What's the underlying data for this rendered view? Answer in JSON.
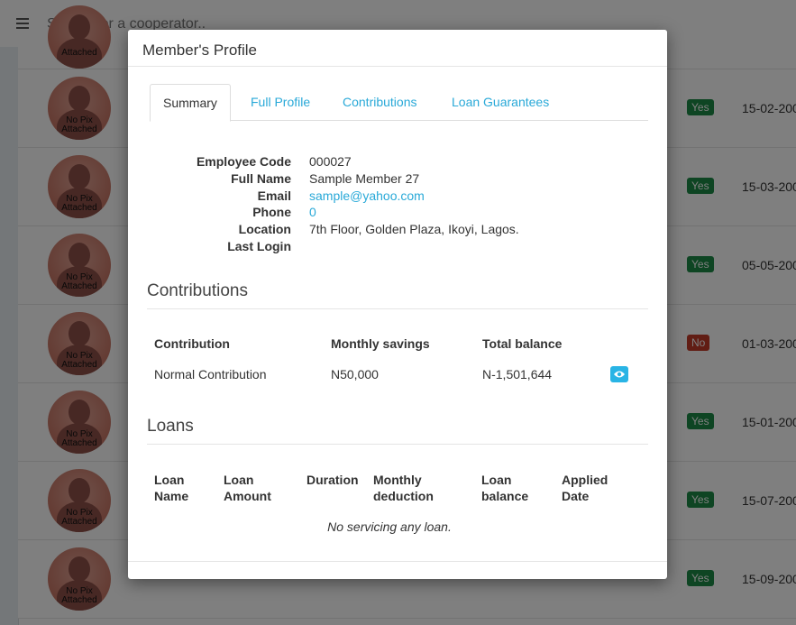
{
  "topbar": {
    "search_placeholder": "Search for a cooperator.."
  },
  "rows": [
    {
      "avatar_text": "No Pix Attached",
      "status": "Yes",
      "date": "15-02-200"
    },
    {
      "avatar_text": "No Pix Attached",
      "status": "Yes",
      "date": "15-03-200"
    },
    {
      "avatar_text": "No Pix Attached",
      "status": "Yes",
      "date": "05-05-200"
    },
    {
      "avatar_text": "No Pix Attached",
      "status": "No",
      "date": "01-03-200"
    },
    {
      "avatar_text": "No Pix Attached",
      "status": "Yes",
      "date": "15-01-200"
    },
    {
      "avatar_text": "No Pix Attached",
      "status": "Yes",
      "date": "15-07-200"
    },
    {
      "avatar_text": "No Pix Attached",
      "status": "Yes",
      "date": "15-09-200"
    }
  ],
  "partial_row": {
    "avatar_text": "Attached"
  },
  "colors": {
    "accent": "#29a9d8",
    "yes": "#1d8a47",
    "no": "#c33a28"
  },
  "modal": {
    "title": "Member's Profile",
    "tabs": [
      "Summary",
      "Full Profile",
      "Contributions",
      "Loan Guarantees"
    ],
    "active_tab": "Summary",
    "summary": {
      "labels": [
        "Employee Code",
        "Full Name",
        "Email",
        "Phone",
        "Location",
        "Last Login"
      ],
      "employee_code": "000027",
      "full_name": "Sample Member 27",
      "email": "sample@yahoo.com",
      "phone": "0",
      "location": "7th Floor, Golden Plaza, Ikoyi, Lagos.",
      "last_login": ""
    },
    "contributions": {
      "title": "Contributions",
      "headers": [
        "Contribution",
        "Monthly savings",
        "Total balance"
      ],
      "rows": [
        {
          "name": "Normal Contribution",
          "monthly": "N50,000",
          "balance": "N-1,501,644",
          "action_icon": "eye-icon"
        }
      ]
    },
    "loans": {
      "title": "Loans",
      "headers": [
        "Loan Name",
        "Loan Amount",
        "Duration",
        "Monthly deduction",
        "Loan balance",
        "Applied Date"
      ],
      "empty_message": "No servicing any loan."
    }
  }
}
